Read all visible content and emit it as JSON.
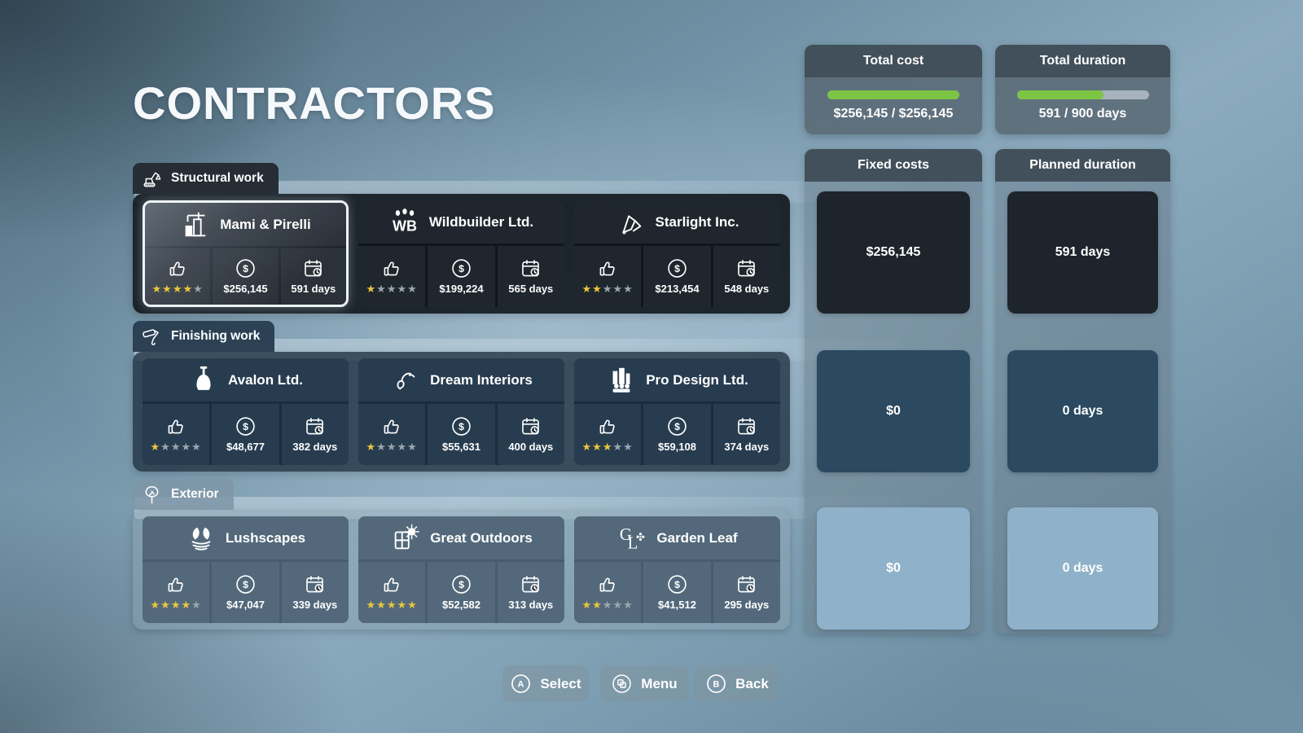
{
  "page_title": "CONTRACTORS",
  "stat_icons": {
    "rating": "thumbs-up-icon",
    "cost": "dollar-circle-icon",
    "duration": "calendar-clock-icon"
  },
  "colors": {
    "star_active": "#e9c63c",
    "star_inactive": "#9ca6af",
    "progress_green": "#7cc544"
  },
  "sections": [
    {
      "id": "structural",
      "label": "Structural work",
      "icon": "excavator-icon",
      "theme": "dark",
      "contractors": [
        {
          "name": "Mami & Pirelli",
          "logo": "crane-building-logo",
          "rating": 4,
          "cost": "$256,145",
          "duration": "591 days",
          "selected": true
        },
        {
          "name": "Wildbuilder Ltd.",
          "logo": "paw-monogram-logo",
          "rating": 1,
          "cost": "$199,224",
          "duration": "565 days",
          "selected": false
        },
        {
          "name": "Starlight Inc.",
          "logo": "excavator-arm-logo",
          "rating": 2,
          "cost": "$213,454",
          "duration": "548 days",
          "selected": false
        }
      ]
    },
    {
      "id": "finishing",
      "label": "Finishing work",
      "icon": "paint-roller-icon",
      "theme": "navy",
      "contractors": [
        {
          "name": "Avalon Ltd.",
          "logo": "plunger-logo",
          "rating": 1,
          "cost": "$48,677",
          "duration": "382 days",
          "selected": false
        },
        {
          "name": "Dream Interiors",
          "logo": "swirl-logo",
          "rating": 1,
          "cost": "$55,631",
          "duration": "400 days",
          "selected": false
        },
        {
          "name": "Pro Design Ltd.",
          "logo": "skyline-people-logo",
          "rating": 3,
          "cost": "$59,108",
          "duration": "374 days",
          "selected": false
        }
      ]
    },
    {
      "id": "exterior",
      "label": "Exterior",
      "icon": "tree-icon",
      "theme": "light",
      "contractors": [
        {
          "name": "Lushscapes",
          "logo": "leaves-water-logo",
          "rating": 4,
          "cost": "$47,047",
          "duration": "339 days",
          "selected": false
        },
        {
          "name": "Great Outdoors",
          "logo": "window-sun-logo",
          "rating": 5,
          "cost": "$52,582",
          "duration": "313 days",
          "selected": false
        },
        {
          "name": "Garden Leaf",
          "logo": "gl-monogram-logo",
          "rating": 2,
          "cost": "$41,512",
          "duration": "295 days",
          "selected": false
        }
      ]
    }
  ],
  "summary_panels": {
    "total_cost": {
      "title": "Total cost",
      "value": "$256,145 / $256,145",
      "progress_percent": 100
    },
    "total_duration": {
      "title": "Total duration",
      "value": "591 / 900 days",
      "progress_percent": 66
    }
  },
  "columns": {
    "fixed_costs": {
      "title": "Fixed costs",
      "cells": [
        {
          "value": "$256,145",
          "theme": "dark"
        },
        {
          "value": "$0",
          "theme": "navy"
        },
        {
          "value": "$0",
          "theme": "light"
        }
      ]
    },
    "planned_duration": {
      "title": "Planned duration",
      "cells": [
        {
          "value": "591 days",
          "theme": "dark"
        },
        {
          "value": "0 days",
          "theme": "navy"
        },
        {
          "value": "0 days",
          "theme": "light"
        }
      ]
    }
  },
  "button_bar": {
    "select": {
      "key": "A",
      "icon": "a-button-icon",
      "label": "Select"
    },
    "menu": {
      "key": "menu",
      "icon": "menu-windows-icon",
      "label": "Menu"
    },
    "back": {
      "key": "B",
      "icon": "b-button-icon",
      "label": "Back"
    }
  }
}
